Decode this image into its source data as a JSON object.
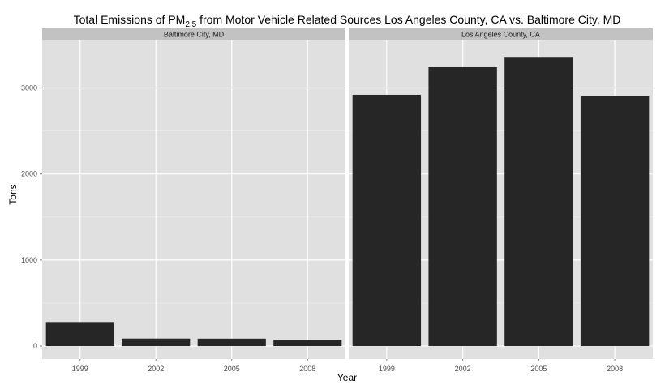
{
  "chart_data": {
    "type": "bar",
    "title_main": "Total Emissions of PM",
    "title_sub": "2.5",
    "title_rest": " from Motor Vehicle Related Sources Los Angeles County, CA vs. Baltimore City, MD",
    "xlabel": "Year",
    "ylabel": "Tons",
    "categories": [
      "1999",
      "2002",
      "2005",
      "2008"
    ],
    "y_ticks": [
      "0",
      "1000",
      "2000",
      "3000"
    ],
    "ylim": [
      -150,
      3560
    ],
    "grid": true,
    "facets": [
      {
        "name": "Baltimore City, MD",
        "values": [
          280,
          88,
          87,
          72
        ]
      },
      {
        "name": "Los Angeles County, CA",
        "values": [
          2920,
          3240,
          3360,
          2910
        ]
      }
    ],
    "colors": {
      "bar": "#262626",
      "panel": "#e0e0e0",
      "strip": "#c2c2c2",
      "grid_major": "#ffffff",
      "grid_minor": "#ececec"
    }
  }
}
